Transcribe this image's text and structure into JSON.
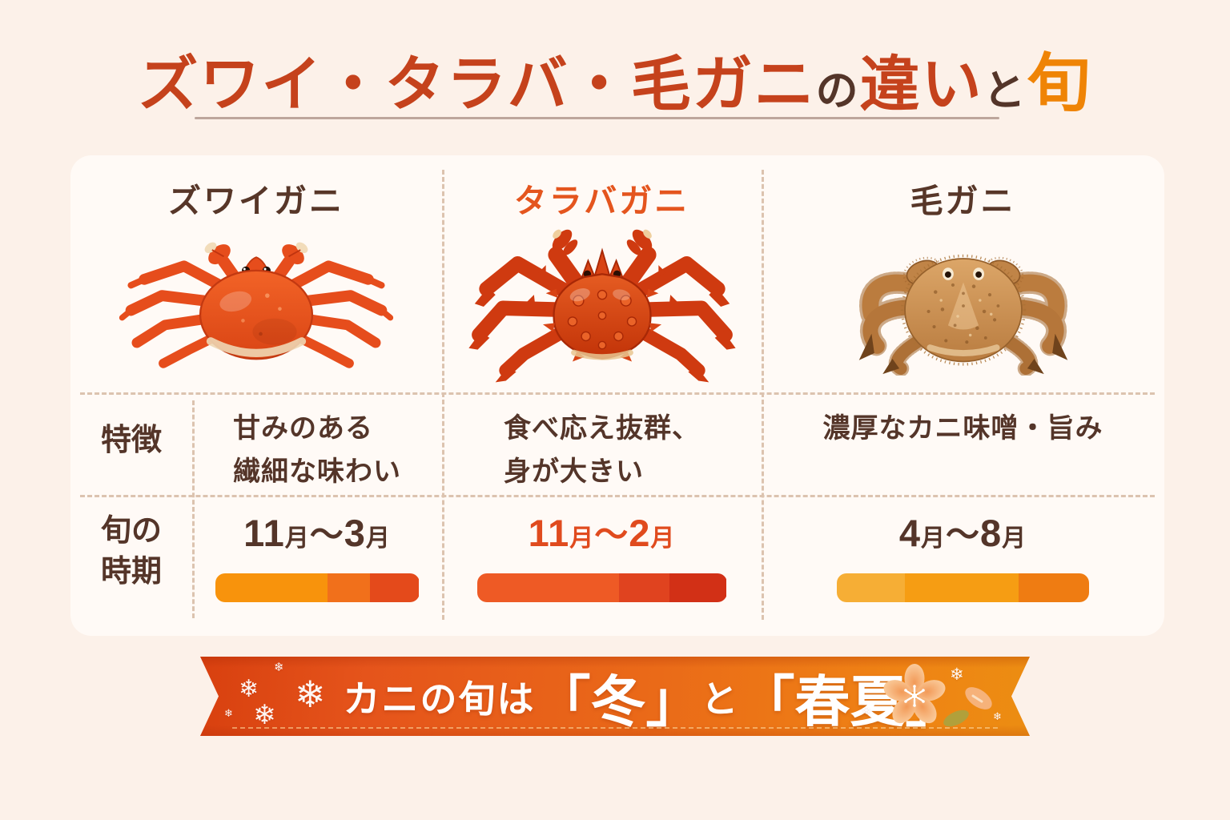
{
  "title": {
    "part1": "ズワイ・タラバ・毛ガニ",
    "particle1": "の",
    "part2": "違い",
    "particle2": "と",
    "part3": "旬"
  },
  "colors": {
    "page_bg": "#fcf1e9",
    "card_bg": "#fffaf6",
    "title_red": "#c5421c",
    "title_orange": "#ef8406",
    "text_brown": "#543529",
    "taraba_accent": "#e4551e",
    "divider_dash": "#dcc3af",
    "banner_gradient_start": "#d8400f",
    "banner_gradient_end": "#ec8d12"
  },
  "table": {
    "row_labels": {
      "features": "特徴",
      "season_line1": "旬の",
      "season_line2": "時期"
    },
    "columns": [
      {
        "name": "ズワイガニ",
        "name_color": "#573628",
        "crab_icon": "snow-crab",
        "feature_line1": "甘みのある",
        "feature_line2": "繊細な味わい",
        "season": {
          "start": "11",
          "unit1": "月",
          "tilde": "～",
          "end": "3",
          "unit2": "月"
        },
        "season_color": "#543529",
        "bar": [
          {
            "color": "#f8930c",
            "pct": 55
          },
          {
            "color": "#f1701b",
            "pct": 21
          },
          {
            "color": "#e44a1b",
            "pct": 24
          }
        ]
      },
      {
        "name": "タラバガニ",
        "name_color": "#e4551e",
        "crab_icon": "king-crab",
        "feature_line1": "食べ応え抜群、",
        "feature_line2": "身が大きい",
        "season": {
          "start": "11",
          "unit1": "月",
          "tilde": "～",
          "end": "2",
          "unit2": "月"
        },
        "season_color": "#e04b1e",
        "bar": [
          {
            "color": "#ee5a25",
            "pct": 57
          },
          {
            "color": "#e0431f",
            "pct": 20
          },
          {
            "color": "#d23016",
            "pct": 23
          }
        ]
      },
      {
        "name": "毛ガニ",
        "name_color": "#573628",
        "crab_icon": "hairy-crab",
        "feature_line1": "濃厚なカニ味噌・旨み",
        "feature_line2": "",
        "season": {
          "start": "4",
          "unit1": "月",
          "tilde": "～",
          "end": "8",
          "unit2": "月"
        },
        "season_color": "#543529",
        "bar": [
          {
            "color": "#f6ae35",
            "pct": 27
          },
          {
            "color": "#f69d13",
            "pct": 45
          },
          {
            "color": "#ef7c12",
            "pct": 28
          }
        ]
      }
    ]
  },
  "banner": {
    "prefix": "カニの旬は",
    "winter": "「冬」",
    "connector": "と",
    "spring_summer": "「春夏」",
    "snowflake_glyph": "❄"
  }
}
